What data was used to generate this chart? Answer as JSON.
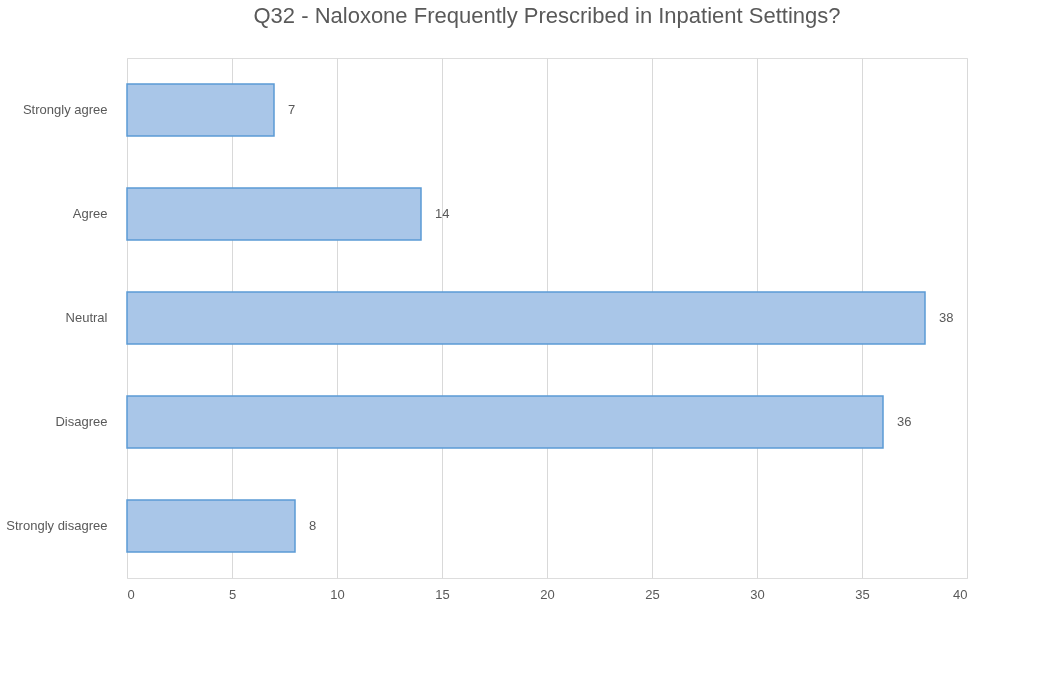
{
  "chart_data": {
    "type": "bar",
    "orientation": "horizontal",
    "title": "Q32 - Naloxone Frequently Prescribed in Inpatient Settings?",
    "categories": [
      "Strongly agree",
      "Agree",
      "Neutral",
      "Disagree",
      "Strongly disagree"
    ],
    "values": [
      7,
      14,
      38,
      36,
      8
    ],
    "color": "#a9c6e8",
    "xlim": [
      0,
      40
    ],
    "xticks": [
      0,
      5,
      10,
      15,
      20,
      25,
      30,
      35,
      40
    ],
    "grid": "x",
    "data_labels": true
  }
}
